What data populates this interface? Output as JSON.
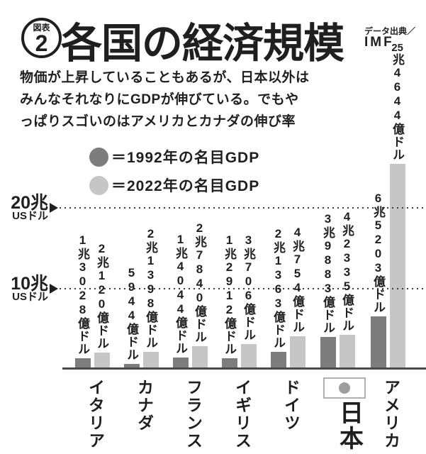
{
  "figure": {
    "badge_label": "図表",
    "badge_number": "2",
    "title": "各国の経済規模",
    "source_label": "データ出典／",
    "source_value": "IMF",
    "description_lines": [
      "物価が上昇していることもあるが、日本以外は",
      "みんなそれなりにGDPが伸びている。でもや",
      "っぱりスゴいのはアメリカとカナダの伸び率"
    ]
  },
  "legend": {
    "items": [
      {
        "label": "＝1992年の名目GDP",
        "swatch_color": "#7d7d7d"
      },
      {
        "label": "＝2022年の名目GDP",
        "swatch_color": "#c6c6c6"
      }
    ]
  },
  "axis": {
    "ticks": [
      {
        "label": "20兆",
        "unit": "USドル",
        "value_trillion_usd": 20
      },
      {
        "label": "10兆",
        "unit": "USドル",
        "value_trillion_usd": 10
      }
    ]
  },
  "chart_data": {
    "type": "bar",
    "title": "各国の経済規模",
    "unit": "兆USドル (trillion USD)",
    "categories": [
      "イタリア",
      "カナダ",
      "フランス",
      "イギリス",
      "ドイツ",
      "日本",
      "アメリカ"
    ],
    "series": [
      {
        "name": "1992年の名目GDP",
        "color": "#7d7d7d",
        "values_trillion_usd": [
          1.3028,
          0.5944,
          1.4044,
          1.2912,
          2.1363,
          3.9883,
          6.5203
        ],
        "value_labels": [
          "1兆3028億ドル",
          "5944億ドル",
          "1兆4044億ドル",
          "1兆2912億ドル",
          "2兆1363億ドル",
          "3兆9883億ドル",
          "6兆5203億ドル"
        ]
      },
      {
        "name": "2022年の名目GDP",
        "color": "#c6c6c6",
        "values_trillion_usd": [
          2.012,
          2.1398,
          2.784,
          3.0706,
          4.0754,
          4.2335,
          25.4644
        ],
        "value_labels": [
          "2兆120億ドル",
          "2兆1398億ドル",
          "2兆7840億ドル",
          "3兆706億ドル",
          "4兆754億ドル",
          "4兆2335億ドル",
          "25兆4644億ドル"
        ]
      }
    ],
    "ylim": [
      0,
      26
    ],
    "gridlines_trillion_usd": [
      10,
      20
    ],
    "grid": "dotted-horizontal",
    "legend_position": "top-left",
    "highlight_category": "日本",
    "japan_flag_icon": true
  },
  "colors": {
    "text": "#1f1f1f",
    "bar_1992": "#7d7d7d",
    "bar_2022": "#c6c6c6",
    "baseline": "#4a4a4a",
    "gridline": "#3a3a3a",
    "flag_circle": "#9e9e9e"
  }
}
